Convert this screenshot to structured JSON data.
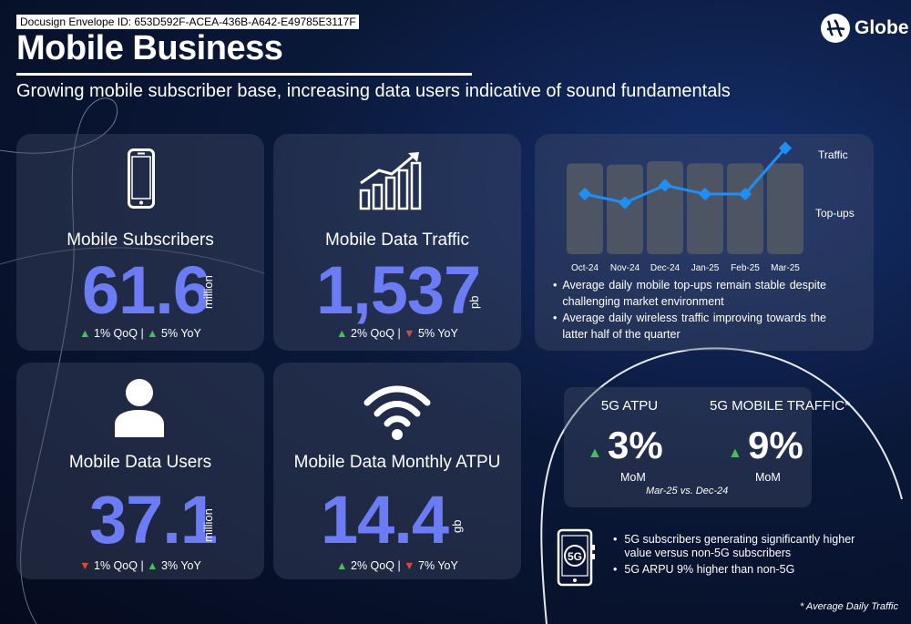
{
  "header": {
    "envelope_id": "Docusign Envelope ID: 653D592F-ACEA-436B-A642-E49785E3117F",
    "title": "Mobile Business",
    "subtitle": "Growing mobile subscriber base, increasing data users indicative of sound fundamentals",
    "logo_text": "Globe"
  },
  "kpis": {
    "subscribers": {
      "label": "Mobile Subscribers",
      "value": "61.6",
      "unit": "million",
      "qoq": "1% QoQ",
      "yoy": "5% YoY",
      "sep": "|",
      "qoq_dir": "up",
      "yoy_dir": "up"
    },
    "traffic": {
      "label": "Mobile Data Traffic",
      "value": "1,537",
      "unit": "pb",
      "qoq": "2% QoQ",
      "yoy": "5% YoY",
      "sep": "|",
      "qoq_dir": "up",
      "yoy_dir": "down"
    },
    "users": {
      "label": "Mobile Data Users",
      "value": "37.1",
      "unit": "million",
      "qoq": "1% QoQ",
      "yoy": "3% YoY",
      "sep": "|",
      "qoq_dir": "down",
      "yoy_dir": "up"
    },
    "atpu": {
      "label": "Mobile Data Monthly ATPU",
      "value": "14.4",
      "unit": "gb",
      "qoq": "2% QoQ",
      "yoy": "7% YoY",
      "sep": "|",
      "qoq_dir": "up",
      "yoy_dir": "down"
    }
  },
  "chart_data": {
    "type": "bar",
    "categories": [
      "Oct-24",
      "Nov-24",
      "Dec-24",
      "Jan-25",
      "Feb-25",
      "Mar-25"
    ],
    "series": [
      {
        "name": "Top-ups",
        "type": "bar",
        "values": [
          0.83,
          0.82,
          0.85,
          0.83,
          0.83,
          0.83
        ]
      },
      {
        "name": "Traffic",
        "type": "line",
        "values": [
          0.55,
          0.47,
          0.63,
          0.55,
          0.55,
          0.97
        ]
      }
    ],
    "legend": [
      "Traffic",
      "Top-ups"
    ],
    "ylim": [
      0,
      1
    ],
    "title": "",
    "xlabel": "",
    "ylabel": "",
    "grid": false,
    "colors": {
      "bar": "#4d5565",
      "line": "#1e90f5"
    }
  },
  "chart_notes": [
    "Average daily mobile top-ups remain stable despite challenging market environment",
    "Average daily wireless traffic improving towards the latter half of the quarter"
  ],
  "five_g": {
    "atpu_label": "5G ATPU",
    "atpu_value": "3%",
    "atpu_mom": "MoM",
    "traffic_label": "5G MOBILE TRAFFIC*",
    "traffic_value": "9%",
    "traffic_mom": "MoM",
    "period": "Mar-25 vs. Dec-24",
    "icon_label": "5G",
    "bullets": [
      "5G subscribers generating significantly higher value versus non-5G subscribers",
      "5G ARPU 9% higher than non-5G"
    ]
  },
  "footnote": "* Average Daily Traffic",
  "colors": {
    "accent": "#6b7cf5",
    "up": "#46c05a",
    "down": "#e0463b"
  }
}
